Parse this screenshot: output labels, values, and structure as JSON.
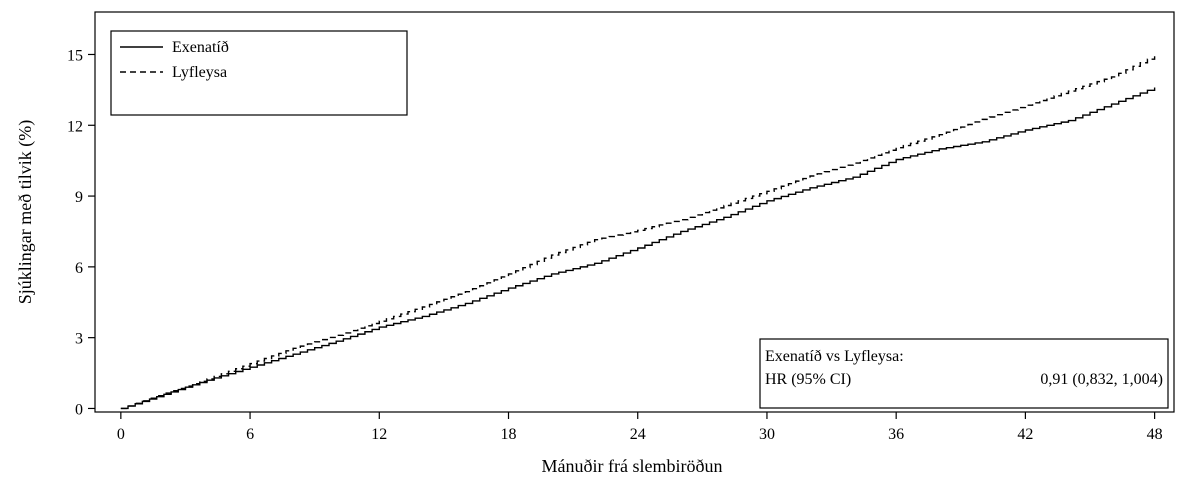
{
  "chart_data": {
    "type": "line",
    "title": "",
    "xlabel": "Mánuðir frá slembiröðun",
    "ylabel": "Sjúklingar með tilvik (%)",
    "xlim": [
      -1.2,
      48.9
    ],
    "ylim": [
      -0.15,
      16.8
    ],
    "x_ticks": [
      0,
      6,
      12,
      18,
      24,
      30,
      36,
      42,
      48
    ],
    "x_tick_labels": [
      "0",
      "6",
      "12",
      "18",
      "24",
      "30",
      "36",
      "42",
      "48"
    ],
    "y_ticks": [
      0,
      3,
      6,
      9,
      12,
      15
    ],
    "y_tick_labels": [
      "0",
      "3",
      "6",
      "9",
      "12",
      "15"
    ],
    "grid": false,
    "legend_position": "top-left",
    "series": [
      {
        "name": "Exenatíð",
        "style": "solid",
        "x": [
          0,
          2,
          4,
          6,
          8,
          10,
          12,
          14,
          16,
          18,
          20,
          22,
          24,
          26,
          28,
          30,
          32,
          34,
          36,
          38,
          40,
          42,
          44,
          46,
          48
        ],
        "y": [
          0,
          0.6,
          1.2,
          1.75,
          2.3,
          2.85,
          3.45,
          3.9,
          4.45,
          5.1,
          5.7,
          6.15,
          6.8,
          7.5,
          8.1,
          8.8,
          9.35,
          9.8,
          10.55,
          11.0,
          11.3,
          11.8,
          12.2,
          12.9,
          13.6
        ]
      },
      {
        "name": "Lyfleysa",
        "style": "dashed",
        "x": [
          0,
          2,
          4,
          6,
          8,
          10,
          12,
          14,
          16,
          18,
          20,
          22,
          24,
          26,
          28,
          30,
          32,
          34,
          36,
          38,
          40,
          42,
          44,
          46,
          48
        ],
        "y": [
          0,
          0.65,
          1.25,
          1.9,
          2.55,
          3.1,
          3.7,
          4.3,
          4.95,
          5.7,
          6.5,
          7.15,
          7.55,
          8.0,
          8.6,
          9.2,
          9.85,
          10.4,
          11.05,
          11.6,
          12.25,
          12.85,
          13.45,
          14.05,
          14.95
        ]
      }
    ],
    "annotation": {
      "heading": "Exenatíð vs Lyfleysa:",
      "label": "HR (95% CI)",
      "value": "0,91 (0,832, 1,004)",
      "position": "bottom-right"
    }
  }
}
